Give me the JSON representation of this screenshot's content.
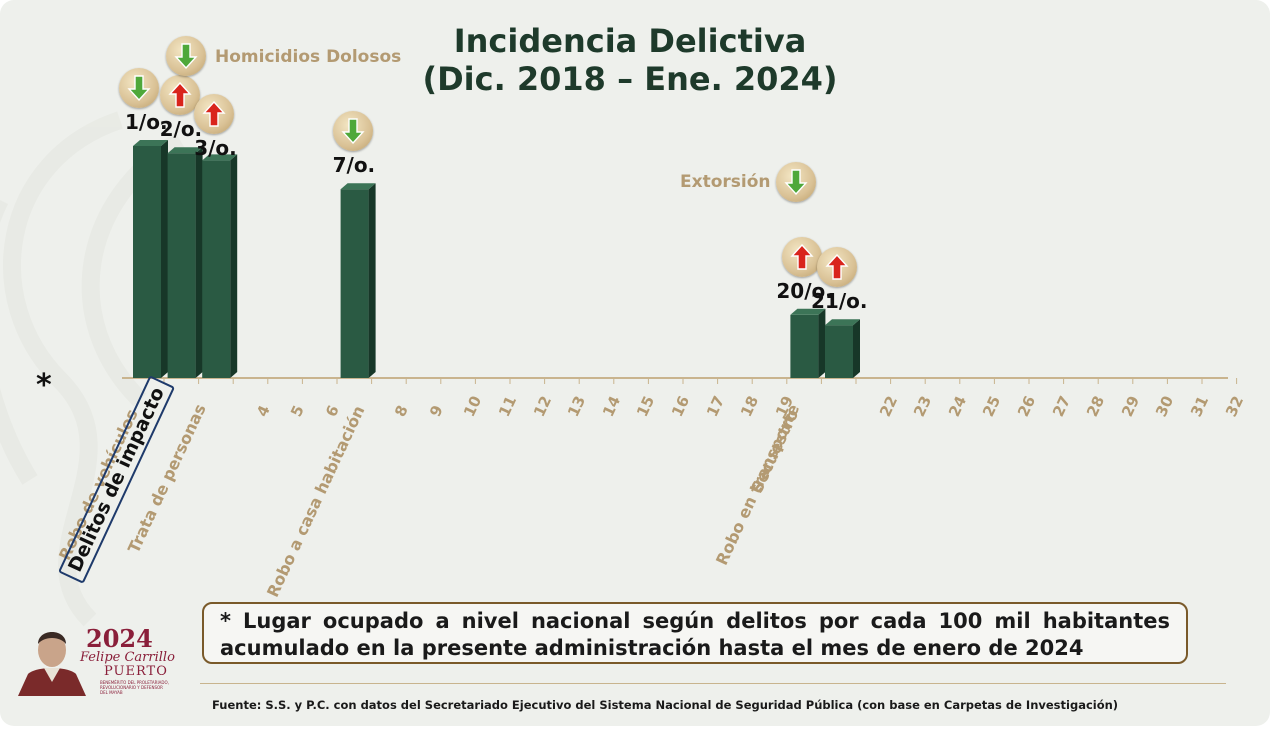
{
  "title": {
    "line1": "Incidencia Delictiva",
    "line2": "(Dic. 2018 – Ene. 2024)"
  },
  "chart_data": {
    "type": "bar",
    "title": "Incidencia Delictiva (Dic. 2018 – Ene. 2024)",
    "xlabel": "",
    "ylabel": "",
    "x_positions": [
      1,
      2,
      3,
      4,
      5,
      6,
      7,
      8,
      9,
      10,
      11,
      12,
      13,
      14,
      15,
      16,
      17,
      18,
      19,
      20,
      21,
      22,
      23,
      24,
      25,
      26,
      27,
      28,
      29,
      30,
      31,
      32
    ],
    "tick_labels": [
      "",
      "",
      "",
      "4",
      "5",
      "6",
      "",
      "8",
      "9",
      "10",
      "11",
      "12",
      "13",
      "14",
      "15",
      "16",
      "17",
      "18",
      "19",
      "",
      "",
      "22",
      "23",
      "24",
      "25",
      "26",
      "27",
      "28",
      "29",
      "30",
      "31",
      "32"
    ],
    "bars": [
      {
        "position": 1,
        "rank_label": "1/o.",
        "category": "Robo de vehículos",
        "trend": "down"
      },
      {
        "position": 2,
        "rank_label": "2/o.",
        "category": "Homicidios Dolosos",
        "trend": "up"
      },
      {
        "position": 3,
        "rank_label": "3/o.",
        "category": "Trata de personas",
        "trend": "up"
      },
      {
        "position": 7,
        "rank_label": "7/o.",
        "category": "Robo a casa habitación",
        "trend": "down"
      },
      {
        "position": 20,
        "rank_label": "20/o.",
        "category": "Robo en transporte",
        "trend": "up"
      },
      {
        "position": 21,
        "rank_label": "21/o.",
        "category": "Secuestro",
        "trend": "up"
      }
    ],
    "extra_badges": [
      {
        "label": "Homicidios Dolosos",
        "trend": "down"
      },
      {
        "label": "Extorsión",
        "trend": "down"
      }
    ],
    "category_labels": [
      "Robo de vehículos",
      "Trata de personas",
      "Robo a casa habitación",
      "Robo en transporte",
      "Secuestro"
    ],
    "impact_label": "Delitos de impacto",
    "grid": false
  },
  "callouts": {
    "homicidios": "Homicidios Dolosos",
    "extorsion": "Extorsión"
  },
  "asterisk": "*",
  "note": "* Lugar ocupado a nivel nacional según delitos por cada 100 mil habitantes acumulado en la presente administración hasta el mes de enero de 2024",
  "source": "Fuente: S.S. y P.C. con datos del Secretariado Ejecutivo del Sistema Nacional de Seguridad Pública (con base en Carpetas de Investigación)",
  "logo": {
    "year": "2024",
    "name": "Felipe Carrillo",
    "place": "PUERTO",
    "small": "BENEMÉRITO DEL PROLETARIADO, REVOLUCIONARIO Y DEFENSOR DEL MAYAB"
  },
  "colors": {
    "bar": "#2a5a43",
    "bar_side": "#173728",
    "bar_top": "#3c7457",
    "arrow_up": "#d9241c",
    "arrow_down": "#4fa83a",
    "label_tan": "#b39a72",
    "title": "#1e3a2b"
  }
}
